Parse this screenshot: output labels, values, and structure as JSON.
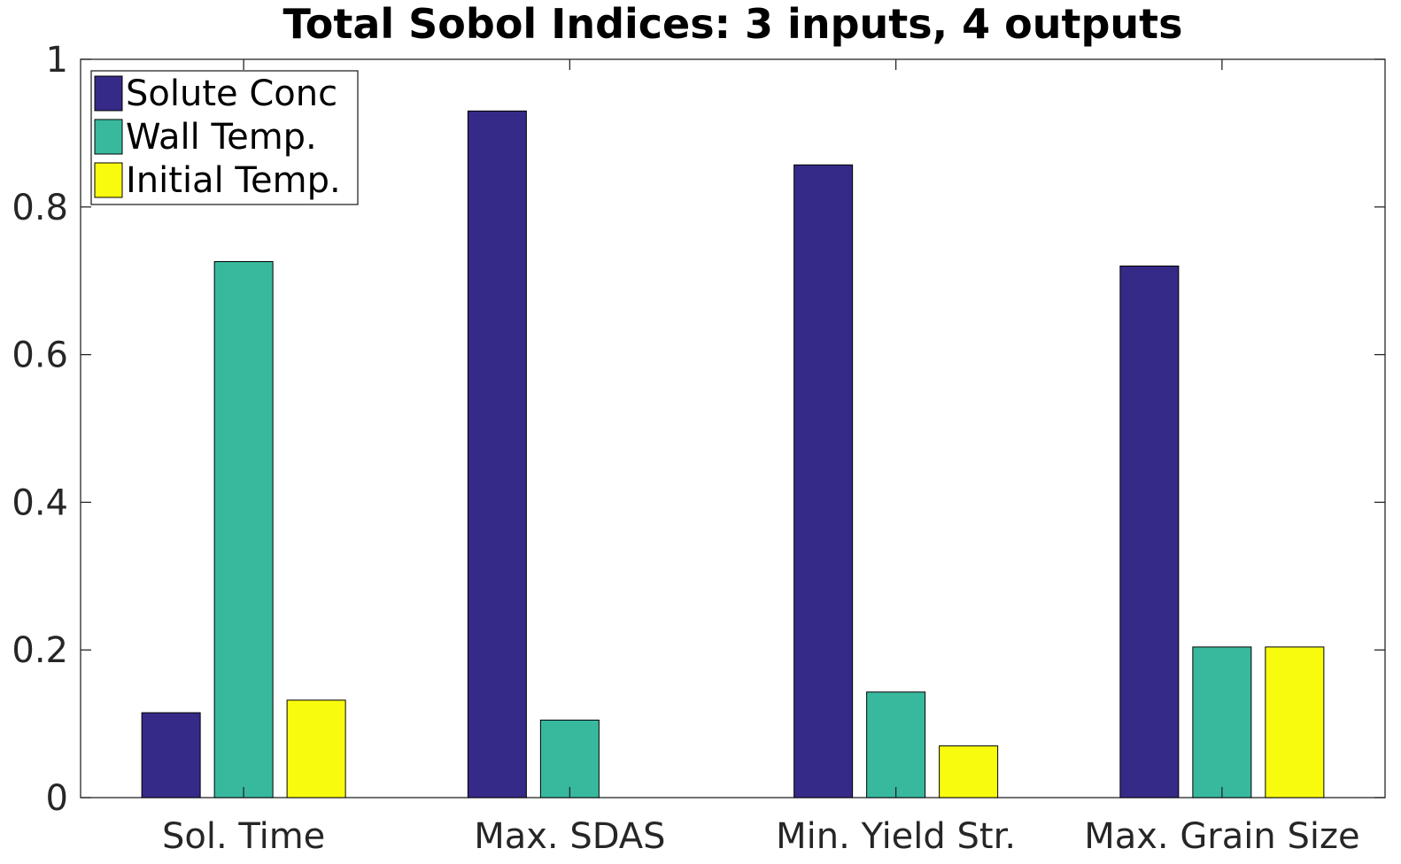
{
  "chart_data": {
    "type": "bar",
    "title": "Total Sobol Indices: 3 inputs, 4 outputs",
    "xlabel": "",
    "ylabel": "",
    "categories": [
      "Sol. Time",
      "Max. SDAS",
      "Min. Yield Str.",
      "Max. Grain Size"
    ],
    "ylim": [
      0,
      1
    ],
    "yticks": [
      0,
      0.2,
      0.4,
      0.6,
      0.8,
      1
    ],
    "ytick_labels": [
      "0",
      "0.2",
      "0.4",
      "0.6",
      "0.8",
      "1"
    ],
    "series": [
      {
        "name": "Solute Conc",
        "color": "#352a87",
        "values": [
          0.115,
          0.93,
          0.857,
          0.72
        ]
      },
      {
        "name": "Wall Temp.",
        "color": "#38b99e",
        "values": [
          0.726,
          0.105,
          0.143,
          0.204
        ]
      },
      {
        "name": "Initial Temp.",
        "color": "#f9fb0e",
        "values": [
          0.132,
          0.0,
          0.07,
          0.204
        ]
      }
    ],
    "grid": false,
    "legend_position": "top-left"
  }
}
